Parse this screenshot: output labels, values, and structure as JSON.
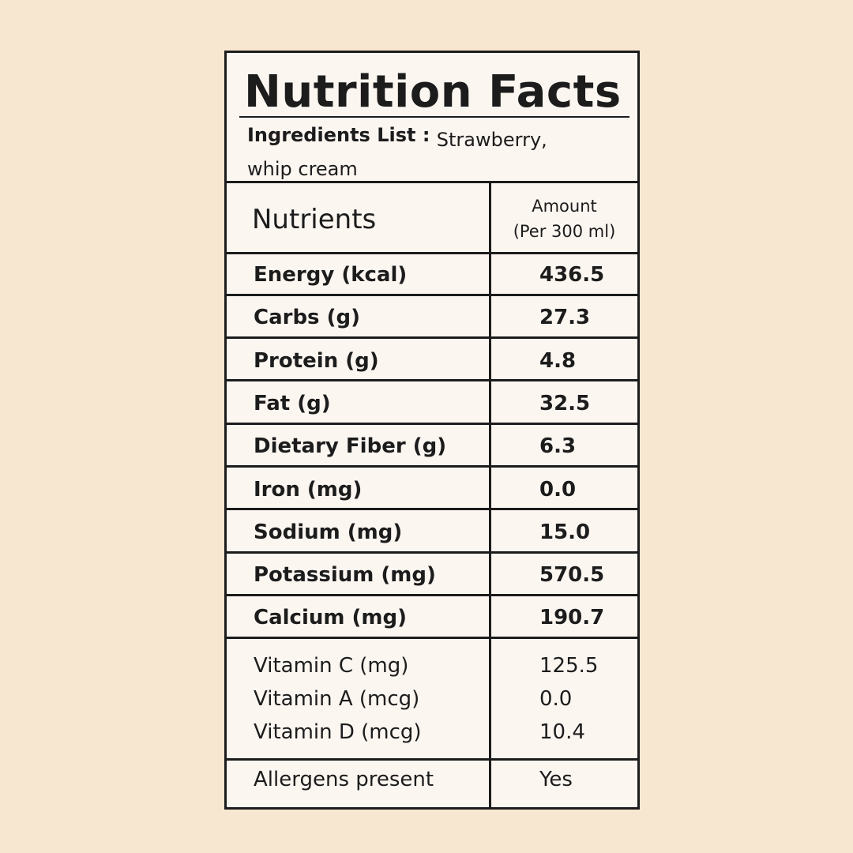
{
  "title": "Nutrition Facts",
  "ingredients": {
    "label": "Ingredients List :",
    "text": "Strawberry, whip cream"
  },
  "table": {
    "header": {
      "nutrients": "Nutrients",
      "amount": "Amount",
      "per": "(Per 300 ml)"
    },
    "rows": [
      [
        "Energy (kcal)",
        "436.5"
      ],
      [
        "Carbs (g)",
        "27.3"
      ],
      [
        "Protein (g)",
        "4.8"
      ],
      [
        "Fat (g)",
        "32.5"
      ],
      [
        "Dietary Fiber (g)",
        "6.3"
      ],
      [
        "Iron (mg)",
        "0.0"
      ],
      [
        "Sodium (mg)",
        "15.0"
      ],
      [
        "Potassium (mg)",
        "570.5"
      ],
      [
        "Calcium (mg)",
        "190.7"
      ]
    ],
    "vitamins": [
      [
        "Vitamin C (mg)",
        "125.5"
      ],
      [
        "Vitamin A (mcg)",
        "0.0"
      ],
      [
        "Vitamin D (mcg)",
        "10.4"
      ]
    ],
    "allergens": [
      "Allergens present",
      "Yes"
    ]
  }
}
